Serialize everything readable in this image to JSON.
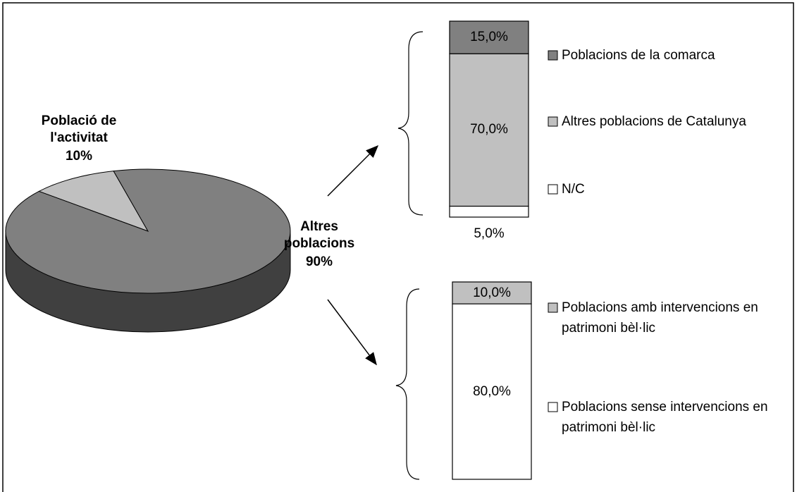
{
  "chart_data": [
    {
      "type": "pie",
      "categories": [
        "Població de l'activitat",
        "Altres poblacions"
      ],
      "values": [
        10,
        90
      ],
      "value_labels": [
        "10%",
        "90%"
      ],
      "colors": [
        "#c0c0c0",
        "#808080"
      ]
    },
    {
      "type": "stacked-bar",
      "series": [
        {
          "name": "Poblacions de la comarca",
          "color": "#808080",
          "values": [
            15
          ],
          "value_labels": [
            "15,0%"
          ]
        },
        {
          "name": "Altres poblacions de Catalunya",
          "color": "#c0c0c0",
          "values": [
            70
          ],
          "value_labels": [
            "70,0%"
          ]
        },
        {
          "name": "N/C",
          "color": "#ffffff",
          "values": [
            5
          ],
          "value_labels": [
            "5,0%"
          ]
        }
      ]
    },
    {
      "type": "stacked-bar",
      "series": [
        {
          "name": "Poblacions amb intervencions en patrimoni bèl·lic",
          "color": "#c0c0c0",
          "values": [
            10
          ],
          "value_labels": [
            "10,0%"
          ]
        },
        {
          "name": "Poblacions sense intervencions en patrimoni bèl·lic",
          "color": "#ffffff",
          "values": [
            80
          ],
          "value_labels": [
            "80,0%"
          ]
        }
      ]
    }
  ]
}
